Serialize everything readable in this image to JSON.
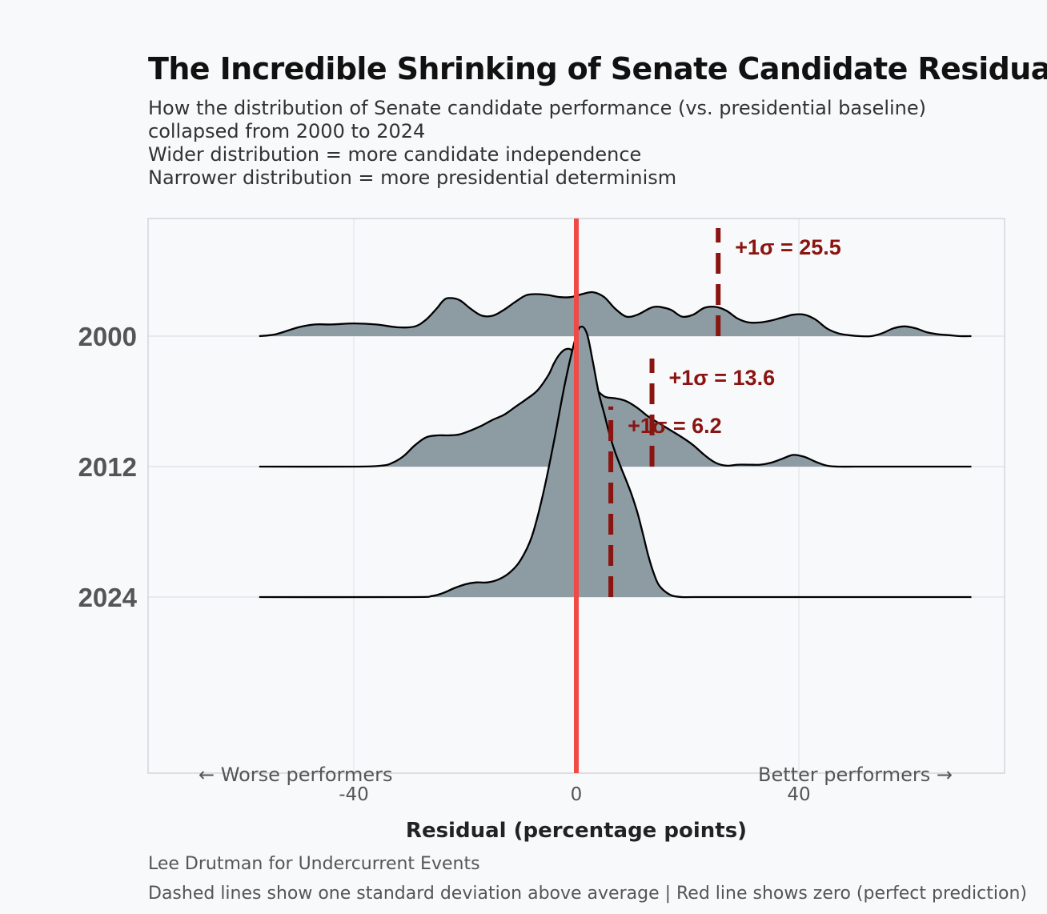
{
  "title": "The Incredible Shrinking of Senate Candidate Residuals",
  "subtitle": [
    "How the distribution of Senate candidate performance (vs. presidential baseline)",
    "collapsed from 2000 to 2024",
    "Wider distribution = more candidate independence",
    "Narrower distribution = more presidential determinism"
  ],
  "caption": {
    "author": "Lee Drutman for Undercurrent Events",
    "note": "Dashed lines show one standard deviation above average | Red line shows zero (perfect prediction)"
  },
  "colors": {
    "fill": "#8d9ba3",
    "zero_line": "#f04a46",
    "sigma": "#8a1410",
    "grid": "#e2e4e8"
  },
  "chart_data": {
    "type": "ridgeline",
    "xlabel": "Residual (percentage points)",
    "xlim": [
      -77,
      77
    ],
    "xticks": [
      -40,
      0,
      40
    ],
    "direction_labels": {
      "left": "← Worse performers",
      "right": "Better performers →"
    },
    "zero_line": 0,
    "series": [
      {
        "year": "2000",
        "sigma_value": 25.5,
        "sigma_label": "+1σ = 25.5",
        "density_x": [
          -57,
          -54,
          -50,
          -47,
          -44,
          -40,
          -36,
          -32,
          -29,
          -27,
          -25,
          -24,
          -23,
          -21,
          -19,
          -17,
          -15,
          -13,
          -11,
          -9,
          -7,
          -5,
          -3,
          -1,
          1,
          3,
          5,
          7,
          9,
          11,
          13,
          14,
          15,
          17,
          19,
          21,
          23,
          25,
          27,
          29,
          31,
          33,
          35,
          37,
          39,
          41,
          43,
          45,
          47,
          49,
          51,
          53,
          55,
          57,
          59,
          61,
          63,
          65,
          67,
          69,
          71
        ],
        "density": [
          0,
          0.02,
          0.09,
          0.12,
          0.12,
          0.13,
          0.12,
          0.09,
          0.1,
          0.17,
          0.29,
          0.36,
          0.39,
          0.37,
          0.28,
          0.21,
          0.21,
          0.27,
          0.35,
          0.42,
          0.43,
          0.42,
          0.4,
          0.4,
          0.43,
          0.45,
          0.4,
          0.28,
          0.2,
          0.22,
          0.28,
          0.3,
          0.3,
          0.27,
          0.2,
          0.22,
          0.29,
          0.3,
          0.26,
          0.18,
          0.14,
          0.14,
          0.16,
          0.19,
          0.22,
          0.22,
          0.17,
          0.08,
          0.03,
          0.01,
          0,
          0,
          0.03,
          0.08,
          0.1,
          0.08,
          0.04,
          0.02,
          0.01,
          0,
          0
        ]
      },
      {
        "year": "2012",
        "sigma_value": 13.6,
        "sigma_label": "+1σ = 13.6",
        "density_x": [
          -57,
          -40,
          -35,
          -33,
          -31,
          -29,
          -27,
          -25,
          -23,
          -21,
          -19,
          -17,
          -15,
          -13,
          -11,
          -9,
          -7,
          -5,
          -4,
          -3,
          -2,
          -1,
          0,
          1,
          3,
          5,
          7,
          9,
          11,
          13,
          15,
          17,
          19,
          21,
          23,
          25,
          27,
          29,
          31,
          33,
          35,
          37,
          39,
          41,
          43,
          45,
          47,
          50,
          55,
          71
        ],
        "density": [
          0,
          0,
          0.01,
          0.04,
          0.11,
          0.22,
          0.3,
          0.32,
          0.32,
          0.33,
          0.37,
          0.42,
          0.48,
          0.53,
          0.61,
          0.69,
          0.78,
          0.94,
          1.06,
          1.15,
          1.2,
          1.2,
          1.13,
          1.0,
          0.83,
          0.72,
          0.7,
          0.67,
          0.6,
          0.51,
          0.44,
          0.37,
          0.3,
          0.22,
          0.12,
          0.04,
          0.01,
          0.02,
          0.02,
          0.02,
          0.04,
          0.08,
          0.12,
          0.1,
          0.05,
          0.01,
          0,
          0,
          0,
          0
        ]
      },
      {
        "year": "2024",
        "sigma_value": 6.2,
        "sigma_label": "+1σ = 6.2",
        "density_x": [
          -57,
          -30,
          -26,
          -24,
          -22,
          -20,
          -18,
          -16,
          -14,
          -12,
          -10,
          -8,
          -6,
          -4,
          -2,
          0,
          1,
          2,
          3,
          4,
          5,
          6,
          7,
          8,
          9,
          10,
          11,
          12,
          13,
          14,
          15,
          17,
          19,
          21,
          30,
          71
        ],
        "density": [
          0,
          0,
          0.01,
          0.04,
          0.09,
          0.13,
          0.15,
          0.15,
          0.18,
          0.25,
          0.38,
          0.62,
          1.05,
          1.6,
          2.2,
          2.68,
          2.77,
          2.68,
          2.4,
          2.1,
          1.88,
          1.66,
          1.48,
          1.33,
          1.19,
          1.04,
          0.86,
          0.64,
          0.41,
          0.23,
          0.11,
          0.02,
          0,
          0,
          0,
          0
        ]
      }
    ]
  }
}
